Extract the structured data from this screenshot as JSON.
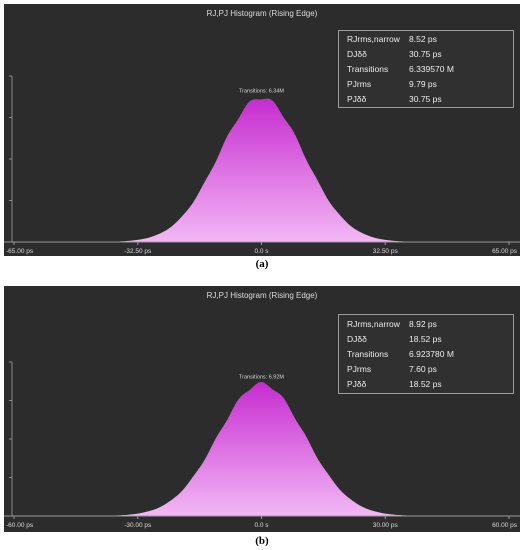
{
  "captions": [
    "(a)",
    "(b)"
  ],
  "chart_data": [
    {
      "type": "area",
      "title": "RJ,PJ Histogram (Rising Edge)",
      "xlabel": "",
      "ylabel": "",
      "x_tick_labels": [
        "-65.00 ps",
        "-32.50 ps",
        "0.0 s",
        "32.50 ps",
        "65.00 ps"
      ],
      "x_ticks": [
        -65,
        -32.5,
        0,
        32.5,
        65
      ],
      "xlim": [
        -65,
        65
      ],
      "distribution": "gaussian",
      "center": 0,
      "sigma": 11.2,
      "peak_normalized": 0.87,
      "annotation": "Transitions: 6.34M",
      "fill_colors": [
        "#c62ccf",
        "#f2b8f5"
      ],
      "grid": false,
      "stats": [
        {
          "label": "RJrms,narrow",
          "value": "8.52 ps"
        },
        {
          "label": "DJδδ",
          "value": "30.75 ps"
        },
        {
          "label": "Transitions",
          "value": "6.339570 M"
        },
        {
          "label": "PJrms",
          "value": "9.79 ps"
        },
        {
          "label": "PJδδ",
          "value": "30.75 ps"
        }
      ]
    },
    {
      "type": "area",
      "title": "RJ,PJ Histogram (Rising Edge)",
      "xlabel": "",
      "ylabel": "",
      "x_tick_labels": [
        "-60.00 ps",
        "-30.00 ps",
        "0.0 s",
        "30.00 ps",
        "60.00 ps"
      ],
      "x_ticks": [
        -60,
        -30,
        0,
        30,
        60
      ],
      "xlim": [
        -60,
        60
      ],
      "distribution": "gaussian",
      "center": 0,
      "sigma": 10.6,
      "peak_normalized": 0.86,
      "annotation": "Transitions: 6.92M",
      "fill_colors": [
        "#c62ccf",
        "#f2b8f5"
      ],
      "grid": false,
      "stats": [
        {
          "label": "RJrms,narrow",
          "value": "8.92 ps"
        },
        {
          "label": "DJδδ",
          "value": "18.52 ps"
        },
        {
          "label": "Transitions",
          "value": "6.923780 M"
        },
        {
          "label": "PJrms",
          "value": "7.60 ps"
        },
        {
          "label": "PJδδ",
          "value": "18.52 ps"
        }
      ]
    }
  ]
}
